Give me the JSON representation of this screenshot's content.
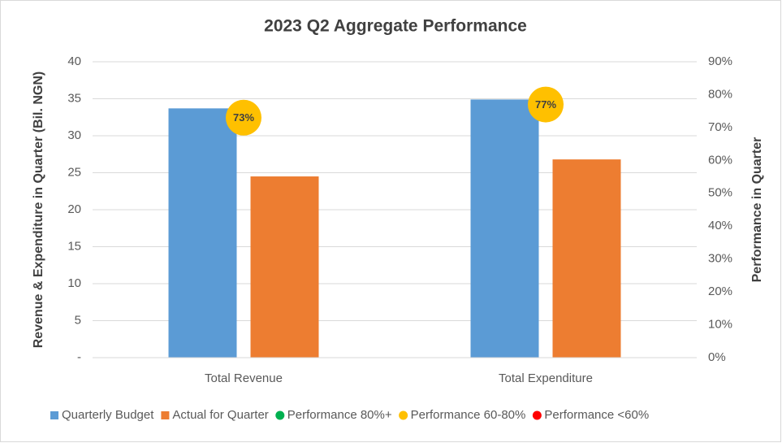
{
  "chart_data": {
    "type": "bar",
    "title": "2023 Q2 Aggregate Performance",
    "y_label": "Revenue & Expenditure in Quarter (Bil. NGN)",
    "y2_label": "Performance in Quarter",
    "categories": [
      "Total Revenue",
      "Total Expenditure"
    ],
    "series": [
      {
        "name": "Quarterly Budget",
        "type": "bar",
        "color": "#5b9bd5",
        "values": [
          33.7,
          34.9
        ]
      },
      {
        "name": "Actual for Quarter",
        "type": "bar",
        "color": "#ed7d31",
        "values": [
          24.5,
          26.8
        ]
      },
      {
        "name": "Performance 80%+",
        "type": "scatter",
        "axis": "y2",
        "color": "#00b050",
        "values": [
          null,
          null
        ]
      },
      {
        "name": "Performance 60-80%",
        "type": "scatter",
        "axis": "y2",
        "color": "#ffc000",
        "values": [
          73,
          77
        ],
        "value_labels": [
          "73%",
          "77%"
        ]
      },
      {
        "name": "Performance <60%",
        "type": "scatter",
        "axis": "y2",
        "color": "#ff0000",
        "values": [
          null,
          null
        ]
      }
    ],
    "ylim": [
      0,
      40
    ],
    "yticks": [
      {
        "value": 0,
        "label": "-"
      },
      5,
      10,
      15,
      20,
      25,
      30,
      35,
      40
    ],
    "y2lim": [
      0,
      90
    ],
    "y2ticks": [
      {
        "value": 0,
        "label": "0%"
      },
      {
        "value": 10,
        "label": "10%"
      },
      {
        "value": 20,
        "label": "20%"
      },
      {
        "value": 30,
        "label": "30%"
      },
      {
        "value": 40,
        "label": "40%"
      },
      {
        "value": 50,
        "label": "50%"
      },
      {
        "value": 60,
        "label": "60%"
      },
      {
        "value": 70,
        "label": "70%"
      },
      {
        "value": 80,
        "label": "80%"
      },
      {
        "value": 90,
        "label": "90%"
      }
    ],
    "grid": true,
    "legend": "bottom"
  }
}
